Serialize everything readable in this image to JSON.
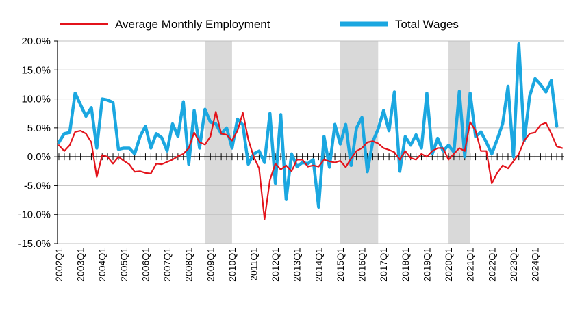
{
  "chart_data": {
    "type": "line",
    "title": "",
    "xlabel": "",
    "ylabel": "",
    "ylim": [
      -15,
      20
    ],
    "yticks": [
      20,
      15,
      10,
      5,
      0,
      -5,
      -10,
      -15
    ],
    "ytick_labels": [
      "20.0%",
      "15.0%",
      "10.0%",
      "5.0%",
      "0.0%",
      "-5.0%",
      "-10.0%",
      "-15.0%"
    ],
    "x_labels": [
      "2002Q1",
      "2003Q1",
      "2004Q1",
      "2005Q1",
      "2006Q1",
      "2007Q1",
      "2008Q1",
      "2009Q1",
      "2010Q1",
      "2011Q1",
      "2012Q1",
      "2013Q1",
      "2014Q1",
      "2015Q1",
      "2016Q1",
      "2017Q1",
      "2018Q1",
      "2019Q1",
      "2020Q1",
      "2021Q1",
      "2022Q1",
      "2023Q1",
      "2024Q1"
    ],
    "x_start_year": 2002,
    "grid": true,
    "legend": "top",
    "recessions": [
      {
        "start": "2008Q4",
        "end": "2010Q1"
      },
      {
        "start": "2015Q1",
        "end": "2016Q4"
      },
      {
        "start": "2020Q1",
        "end": "2021Q1"
      }
    ],
    "series": [
      {
        "name": "Average Monthly Employment",
        "color": "#e3131b",
        "style": "thin",
        "values": [
          2.0,
          1.0,
          2.0,
          4.3,
          4.5,
          4.0,
          2.5,
          -3.5,
          0.3,
          0.0,
          -1.2,
          0.0,
          -0.7,
          -1.3,
          -2.6,
          -2.5,
          -2.8,
          -2.9,
          -1.2,
          -1.3,
          -0.9,
          -0.5,
          0.1,
          0.5,
          1.5,
          4.2,
          2.5,
          2.1,
          3.5,
          7.8,
          4.0,
          3.8,
          2.8,
          4.5,
          7.6,
          3.0,
          0.0,
          -2.0,
          -10.8,
          -4.0,
          -1.2,
          -2.2,
          -1.5,
          -2.5,
          -0.5,
          -0.5,
          -1.7,
          -1.5,
          -1.7,
          -0.5,
          -0.8,
          -1.0,
          -0.7,
          -1.8,
          -0.3,
          1.0,
          1.5,
          2.5,
          2.7,
          2.3,
          1.5,
          1.2,
          0.8,
          -0.5,
          1.0,
          -0.2,
          -0.5,
          0.5,
          0.0,
          1.0,
          1.5,
          1.5,
          -0.5,
          0.5,
          1.5,
          1.0,
          6.0,
          4.5,
          1.0,
          1.0,
          -4.6,
          -2.8,
          -1.5,
          -2.0,
          -0.8,
          0.5,
          2.8,
          4.0,
          4.2,
          5.5,
          5.9,
          4.0,
          1.8,
          1.5
        ]
      },
      {
        "name": "Total Wages",
        "color": "#1ba7e0",
        "style": "thick",
        "values": [
          2.5,
          4.0,
          4.2,
          11.0,
          9.0,
          7.0,
          8.5,
          1.5,
          10.0,
          9.8,
          9.4,
          1.3,
          1.5,
          1.5,
          0.5,
          3.5,
          5.3,
          1.5,
          4.0,
          3.3,
          1.0,
          5.7,
          3.5,
          9.5,
          -1.3,
          8.0,
          1.5,
          8.2,
          6.0,
          5.7,
          4.0,
          5.0,
          1.5,
          6.5,
          5.5,
          -1.3,
          0.5,
          1.0,
          -1.0,
          7.5,
          -4.6,
          7.3,
          -7.4,
          0.5,
          -1.7,
          -1.0,
          -1.2,
          -0.5,
          -8.7,
          3.5,
          -1.8,
          5.6,
          2.2,
          5.6,
          -1.5,
          5.0,
          6.8,
          -2.6,
          2.6,
          4.8,
          8.0,
          4.5,
          11.2,
          -2.5,
          3.5,
          2.0,
          3.8,
          1.5,
          11.0,
          0.5,
          3.2,
          1.0,
          2.0,
          0.8,
          11.3,
          0.0,
          11.0,
          3.5,
          4.3,
          2.5,
          0.5,
          3.0,
          5.7,
          12.2,
          0.0,
          19.5,
          2.8,
          10.5,
          13.5,
          12.5,
          11.2,
          13.2,
          5.3
        ]
      }
    ]
  }
}
